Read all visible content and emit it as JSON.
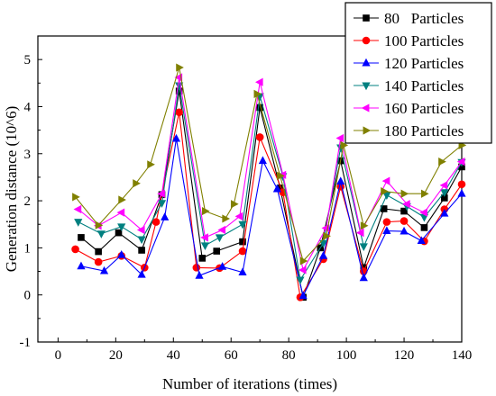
{
  "chart_data": {
    "type": "line",
    "title": "",
    "xlabel": "Number of iterations (times)",
    "ylabel": "Generation distance (10^6)",
    "xlim": [
      -7,
      140
    ],
    "ylim": [
      -1,
      5.5
    ],
    "xticks": [
      "0",
      "20",
      "40",
      "60",
      "80",
      "100",
      "120",
      "140"
    ],
    "yticks": [
      "-1",
      "0",
      "1",
      "2",
      "3",
      "4",
      "5"
    ],
    "legend_position": "top-right",
    "grid": false,
    "series": [
      {
        "name": "80   Particles",
        "color": "#000000",
        "marker": "square",
        "points": [
          [
            8,
            1.22
          ],
          [
            14,
            0.92
          ],
          [
            21,
            1.32
          ],
          [
            29,
            0.95
          ],
          [
            36,
            2.13
          ],
          [
            42,
            4.33
          ],
          [
            50,
            0.78
          ],
          [
            55,
            0.93
          ],
          [
            64,
            1.13
          ],
          [
            70,
            3.98
          ],
          [
            77,
            2.27
          ],
          [
            85,
            -0.05
          ],
          [
            91,
            1.0
          ],
          [
            98,
            2.85
          ],
          [
            106,
            0.58
          ],
          [
            113,
            1.83
          ],
          [
            120,
            1.78
          ],
          [
            127,
            1.43
          ],
          [
            134,
            2.06
          ],
          [
            140,
            2.72
          ]
        ]
      },
      {
        "name": "100 Particles",
        "color": "#ff0000",
        "marker": "circle",
        "points": [
          [
            6,
            0.97
          ],
          [
            14,
            0.7
          ],
          [
            22,
            0.83
          ],
          [
            30,
            0.58
          ],
          [
            34,
            1.55
          ],
          [
            42,
            3.88
          ],
          [
            48,
            0.58
          ],
          [
            56,
            0.57
          ],
          [
            64,
            0.93
          ],
          [
            70,
            3.35
          ],
          [
            78,
            2.18
          ],
          [
            84,
            -0.05
          ],
          [
            92,
            0.76
          ],
          [
            98,
            2.3
          ],
          [
            106,
            0.5
          ],
          [
            114,
            1.55
          ],
          [
            120,
            1.57
          ],
          [
            127,
            1.14
          ],
          [
            134,
            1.82
          ],
          [
            140,
            2.35
          ]
        ]
      },
      {
        "name": "120 Particles",
        "color": "#0000ff",
        "marker": "triangle-up",
        "points": [
          [
            8,
            0.61
          ],
          [
            16,
            0.51
          ],
          [
            22,
            0.85
          ],
          [
            29,
            0.43
          ],
          [
            37,
            1.65
          ],
          [
            41,
            3.32
          ],
          [
            49,
            0.41
          ],
          [
            57,
            0.6
          ],
          [
            64,
            0.48
          ],
          [
            71,
            2.85
          ],
          [
            76,
            2.25
          ],
          [
            85,
            -0.02
          ],
          [
            92,
            0.83
          ],
          [
            98,
            2.41
          ],
          [
            106,
            0.36
          ],
          [
            114,
            1.36
          ],
          [
            120,
            1.35
          ],
          [
            126,
            1.15
          ],
          [
            134,
            1.73
          ],
          [
            140,
            2.15
          ]
        ]
      },
      {
        "name": "140 Particles",
        "color": "#008080",
        "marker": "triangle-down",
        "points": [
          [
            7,
            1.55
          ],
          [
            15,
            1.3
          ],
          [
            22,
            1.45
          ],
          [
            29,
            1.18
          ],
          [
            36,
            1.95
          ],
          [
            42,
            4.45
          ],
          [
            51,
            1.05
          ],
          [
            56,
            1.22
          ],
          [
            64,
            1.5
          ],
          [
            70,
            4.22
          ],
          [
            78,
            2.52
          ],
          [
            84,
            0.32
          ],
          [
            92,
            1.1
          ],
          [
            98,
            3.13
          ],
          [
            106,
            1.03
          ],
          [
            114,
            2.12
          ],
          [
            121,
            1.88
          ],
          [
            127,
            1.65
          ],
          [
            134,
            2.18
          ],
          [
            140,
            2.82
          ]
        ]
      },
      {
        "name": "160 Particles",
        "color": "#ff00ff",
        "marker": "triangle-left",
        "points": [
          [
            7,
            1.82
          ],
          [
            14,
            1.47
          ],
          [
            22,
            1.75
          ],
          [
            29,
            1.38
          ],
          [
            36,
            2.15
          ],
          [
            42,
            4.62
          ],
          [
            51,
            1.22
          ],
          [
            57,
            1.38
          ],
          [
            63,
            1.67
          ],
          [
            70,
            4.52
          ],
          [
            78,
            2.55
          ],
          [
            85,
            0.53
          ],
          [
            93,
            1.42
          ],
          [
            98,
            3.33
          ],
          [
            105,
            1.32
          ],
          [
            114,
            2.42
          ],
          [
            121,
            1.93
          ],
          [
            127,
            1.75
          ],
          [
            134,
            2.33
          ],
          [
            140,
            2.83
          ]
        ]
      },
      {
        "name": "180 Particles",
        "color": "#808000",
        "marker": "triangle-right",
        "points": [
          [
            6,
            2.08
          ],
          [
            14,
            1.48
          ],
          [
            22,
            2.02
          ],
          [
            27,
            2.37
          ],
          [
            32,
            2.77
          ],
          [
            42,
            4.83
          ],
          [
            51,
            1.78
          ],
          [
            58,
            1.62
          ],
          [
            61,
            1.93
          ],
          [
            69,
            4.27
          ],
          [
            77,
            2.53
          ],
          [
            85,
            0.72
          ],
          [
            93,
            1.25
          ],
          [
            99,
            3.18
          ],
          [
            106,
            1.47
          ],
          [
            113,
            2.2
          ],
          [
            120,
            2.15
          ],
          [
            127,
            2.15
          ],
          [
            133,
            2.83
          ],
          [
            140,
            3.18
          ]
        ]
      }
    ]
  }
}
